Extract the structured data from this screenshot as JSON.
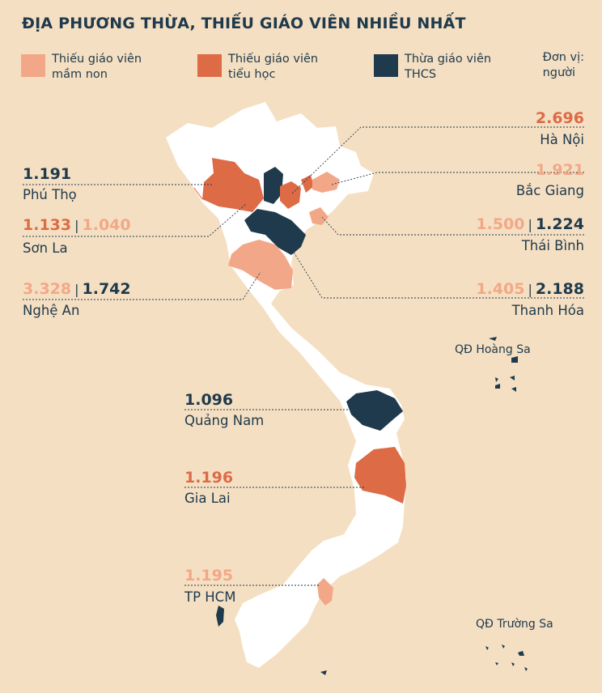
{
  "title": "ĐỊA PHƯƠNG THỪA, THIẾU GIÁO VIÊN  NHIỀU NHẤT",
  "legend": [
    {
      "line1": "Thiếu giáo viên",
      "line2": "mầm non",
      "color": "#f2a888"
    },
    {
      "line1": "Thiếu giáo viên",
      "line2": "tiểu học",
      "color": "#dc6b46"
    },
    {
      "line1": "Thừa giáo viên",
      "line2": "THCS",
      "color": "#1e3a4c"
    }
  ],
  "unit": {
    "line1": "Đơn vị:",
    "line2": "người"
  },
  "provinces": {
    "ha_noi": {
      "name": "Hà Nội",
      "v1": "2.696"
    },
    "bac_giang": {
      "name": "Bắc Giang",
      "v1": "1.921"
    },
    "thai_binh": {
      "name": "Thái Bình",
      "v1": "1.500",
      "v2": "1.224"
    },
    "thanh_hoa": {
      "name": "Thanh Hóa",
      "v1": "1.405",
      "v2": "2.188"
    },
    "phu_tho": {
      "name": "Phú Thọ",
      "v1": "1.191"
    },
    "son_la": {
      "name": "Sơn La",
      "v1": "1.133",
      "v2": "1.040"
    },
    "nghe_an": {
      "name": "Nghệ An",
      "v1": "3.328",
      "v2": "1.742"
    },
    "quang_nam": {
      "name": "Quảng Nam",
      "v1": "1.096"
    },
    "gia_lai": {
      "name": "Gia Lai",
      "v1": "1.196"
    },
    "tp_hcm": {
      "name": "TP HCM",
      "v1": "1.195"
    }
  },
  "islands": {
    "hoang_sa": "QĐ Hoàng Sa",
    "truong_sa": "QĐ Trường Sa"
  },
  "colors": {
    "background": "#f5dfc2",
    "land": "#ffffff",
    "mam_non": "#f2a888",
    "tieu_hoc": "#dc6b46",
    "thcs": "#1e3a4c"
  }
}
